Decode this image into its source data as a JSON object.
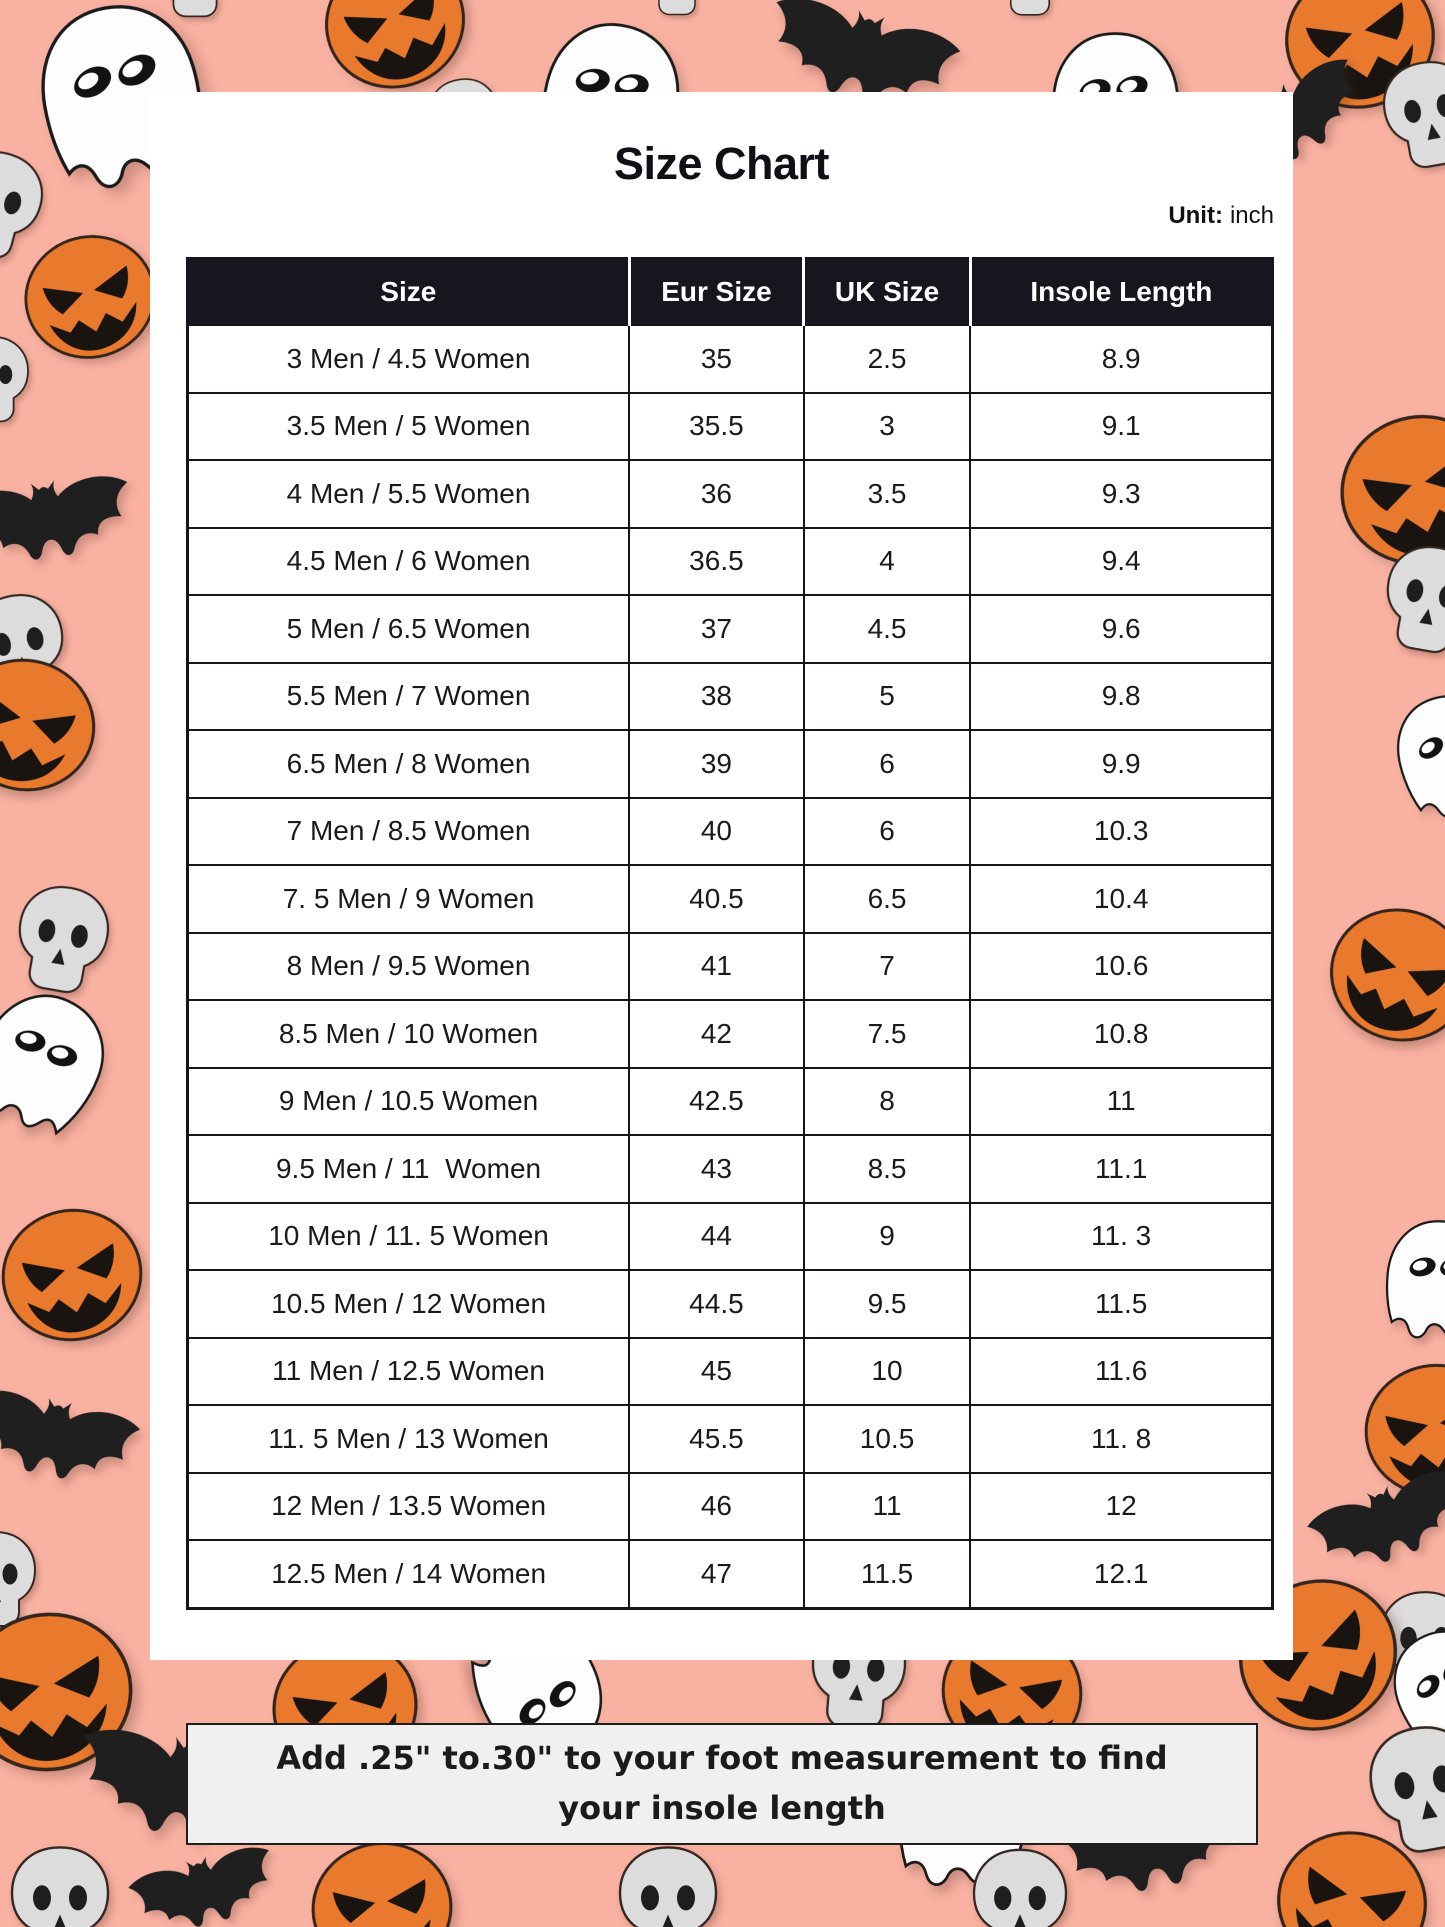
{
  "page": {
    "title": "Size Chart"
  },
  "unit": {
    "label": "Unit:",
    "value": "inch"
  },
  "table": {
    "headers": [
      "Size",
      "Eur Size",
      "UK Size",
      "Insole Length"
    ],
    "rows": [
      [
        "3 Men / 4.5 Women",
        "35",
        "2.5",
        "8.9"
      ],
      [
        "3.5 Men / 5 Women",
        "35.5",
        "3",
        "9.1"
      ],
      [
        "4 Men / 5.5 Women",
        "36",
        "3.5",
        "9.3"
      ],
      [
        "4.5 Men / 6 Women",
        "36.5",
        "4",
        "9.4"
      ],
      [
        "5 Men / 6.5 Women",
        "37",
        "4.5",
        "9.6"
      ],
      [
        "5.5 Men / 7 Women",
        "38",
        "5",
        "9.8"
      ],
      [
        "6.5 Men / 8 Women",
        "39",
        "6",
        "9.9"
      ],
      [
        "7 Men / 8.5 Women",
        "40",
        "6",
        "10.3"
      ],
      [
        "7. 5 Men / 9 Women",
        "40.5",
        "6.5",
        "10.4"
      ],
      [
        "8 Men / 9.5 Women",
        "41",
        "7",
        "10.6"
      ],
      [
        "8.5 Men / 10 Women",
        "42",
        "7.5",
        "10.8"
      ],
      [
        "9 Men / 10.5 Women",
        "42.5",
        "8",
        "11"
      ],
      [
        "9.5 Men / 11  Women",
        "43",
        "8.5",
        "11.1"
      ],
      [
        "10 Men / 11. 5 Women",
        "44",
        "9",
        "11. 3"
      ],
      [
        "10.5 Men / 12 Women",
        "44.5",
        "9.5",
        "11.5"
      ],
      [
        "11 Men / 12.5 Women",
        "45",
        "10",
        "11.6"
      ],
      [
        "11. 5 Men / 13 Women",
        "45.5",
        "10.5",
        "11. 8"
      ],
      [
        "12 Men / 13.5 Women",
        "46",
        "11",
        "12"
      ],
      [
        "12.5 Men / 14 Women",
        "47",
        "11.5",
        "12.1"
      ]
    ]
  },
  "footnote": {
    "text": "Add .25\" to.30\" to your foot measurement to find your insole length"
  },
  "background": {
    "pattern_icons": [
      "pumpkin-icon",
      "ghost-icon",
      "bat-icon",
      "skull-icon"
    ]
  },
  "colors": {
    "background": "#F9B1A1",
    "card": "#FFFFFF",
    "table_header_bg": "#16161F",
    "table_header_text": "#FFFFFF",
    "pumpkin_orange": "#E9792D",
    "banner_bg": "#F0F0F0",
    "text": "#1A1A1A"
  }
}
